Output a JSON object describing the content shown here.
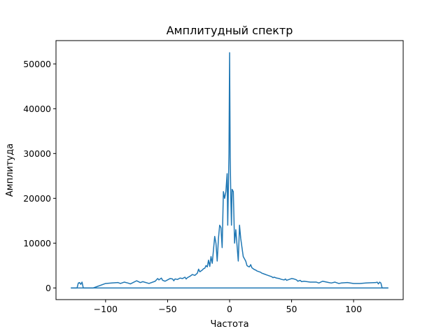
{
  "chart_data": {
    "type": "line",
    "title": "Амплитудный спектр",
    "xlabel": "Частота",
    "ylabel": "Амплитуда",
    "xlim": [
      -140,
      140
    ],
    "ylim": [
      -2600,
      55200
    ],
    "xticks": [
      -100,
      -50,
      0,
      50,
      100
    ],
    "xtick_labels": [
      "−100",
      "−50",
      "0",
      "50",
      "100"
    ],
    "yticks": [
      0,
      10000,
      20000,
      30000,
      40000,
      50000
    ],
    "ytick_labels": [
      "0",
      "10000",
      "20000",
      "30000",
      "40000",
      "50000"
    ],
    "grid": false,
    "series": [
      {
        "color": "#1f77b4",
        "x": [
          -128,
          -123,
          -122,
          -121,
          -120,
          -119,
          -118,
          -110,
          -100,
          -95,
          -90,
          -88,
          -85,
          -82,
          -80,
          -75,
          -72,
          -70,
          -65,
          -60,
          -58,
          -57,
          -56,
          -55,
          -54,
          -52,
          -50,
          -48,
          -46,
          -45,
          -44,
          -42,
          -40,
          -38,
          -36,
          -35,
          -34,
          -32,
          -30,
          -28,
          -26,
          -25,
          -24,
          -22,
          -21,
          -20,
          -19,
          -18,
          -17,
          -16,
          -15,
          -14,
          -13,
          -12,
          -11,
          -10,
          -9,
          -8,
          -7,
          -6,
          -5,
          -4,
          -3,
          -2,
          -1.5,
          -1,
          -0.5,
          0,
          0.5,
          1,
          1.5,
          2,
          3,
          4,
          5,
          6,
          7,
          8,
          9,
          10,
          11,
          12,
          13,
          14,
          15,
          16,
          17,
          18,
          19,
          20,
          21,
          22,
          24,
          25,
          26,
          28,
          30,
          32,
          34,
          35,
          36,
          38,
          40,
          42,
          44,
          45,
          46,
          48,
          50,
          52,
          54,
          55,
          56,
          57,
          58,
          60,
          65,
          70,
          72,
          75,
          80,
          82,
          85,
          88,
          90,
          95,
          100,
          105,
          110,
          118,
          119,
          120,
          121,
          122,
          123,
          128
        ],
        "y": [
          0,
          0,
          1100,
          1200,
          800,
          1300,
          0,
          0,
          1000,
          1100,
          1200,
          1000,
          1300,
          1100,
          900,
          1600,
          1200,
          1400,
          1000,
          1500,
          2100,
          1800,
          2000,
          2200,
          1700,
          1500,
          1800,
          2100,
          2000,
          1600,
          2000,
          1900,
          2200,
          2100,
          2400,
          2000,
          2300,
          2600,
          3000,
          2800,
          3300,
          4200,
          3600,
          4000,
          4300,
          4400,
          5000,
          4700,
          6200,
          4800,
          7000,
          5500,
          8500,
          11500,
          10000,
          6000,
          11000,
          14000,
          13500,
          9000,
          21500,
          20000,
          21500,
          25500,
          14000,
          22000,
          30000,
          52500,
          29000,
          20000,
          14000,
          22000,
          21500,
          10000,
          13000,
          9500,
          6000,
          14000,
          11000,
          9000,
          7000,
          6500,
          6000,
          5000,
          4800,
          4700,
          5200,
          4500,
          4300,
          4100,
          4000,
          3800,
          3600,
          3500,
          3300,
          3100,
          2900,
          2700,
          2500,
          2300,
          2400,
          2200,
          2100,
          1900,
          1800,
          2000,
          1700,
          1900,
          2100,
          2000,
          1800,
          1500,
          1600,
          1700,
          1400,
          1500,
          1300,
          1300,
          1100,
          1500,
          1200,
          1100,
          1300,
          1000,
          1100,
          1200,
          1000,
          1000,
          1100,
          1200,
          1300,
          900,
          1300,
          1100,
          0,
          0
        ]
      }
    ]
  }
}
